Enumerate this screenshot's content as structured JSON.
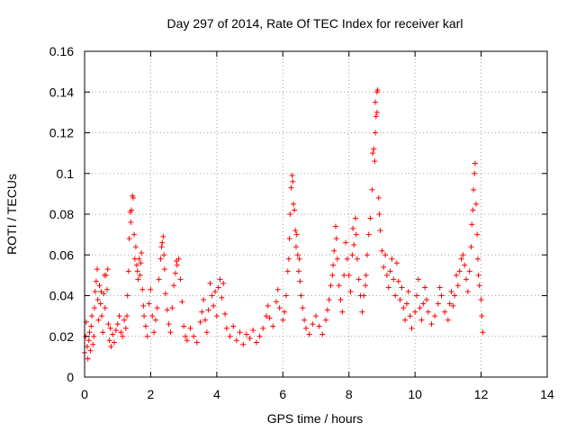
{
  "chart_data": {
    "type": "scatter",
    "title": "Day 297 of 2014, Rate Of TEC Index for receiver karl",
    "xlabel": "GPS time / hours",
    "ylabel": "ROTI / TECUs",
    "xlim": [
      0,
      14
    ],
    "ylim": [
      0,
      0.16
    ],
    "x_ticks": [
      0,
      2,
      4,
      6,
      8,
      10,
      12,
      14
    ],
    "y_ticks": [
      0,
      0.02,
      0.04,
      0.06,
      0.08,
      0.1,
      0.12,
      0.14,
      0.16
    ],
    "x_tick_labels": [
      "0",
      "2",
      "4",
      "6",
      "8",
      "10",
      "12",
      "14"
    ],
    "y_tick_labels": [
      "0",
      "0.02",
      "0.04",
      "0.06",
      "0.08",
      "0.1",
      "0.12",
      "0.14",
      "0.16"
    ],
    "grid": true,
    "marker": "+",
    "color": "#ff0000",
    "series": [
      {
        "name": "ROTI",
        "points": [
          [
            0.0,
            0.012
          ],
          [
            0.03,
            0.02
          ],
          [
            0.05,
            0.027
          ],
          [
            0.08,
            0.015
          ],
          [
            0.1,
            0.009
          ],
          [
            0.13,
            0.018
          ],
          [
            0.15,
            0.022
          ],
          [
            0.18,
            0.013
          ],
          [
            0.2,
            0.025
          ],
          [
            0.22,
            0.03
          ],
          [
            0.25,
            0.016
          ],
          [
            0.28,
            0.02
          ],
          [
            0.3,
            0.034
          ],
          [
            0.32,
            0.042
          ],
          [
            0.35,
            0.047
          ],
          [
            0.38,
            0.053
          ],
          [
            0.4,
            0.038
          ],
          [
            0.42,
            0.028
          ],
          [
            0.45,
            0.045
          ],
          [
            0.48,
            0.036
          ],
          [
            0.5,
            0.042
          ],
          [
            0.52,
            0.03
          ],
          [
            0.55,
            0.022
          ],
          [
            0.58,
            0.041
          ],
          [
            0.6,
            0.05
          ],
          [
            0.62,
            0.034
          ],
          [
            0.65,
            0.05
          ],
          [
            0.68,
            0.043
          ],
          [
            0.7,
            0.053
          ],
          [
            0.72,
            0.026
          ],
          [
            0.75,
            0.018
          ],
          [
            0.78,
            0.024
          ],
          [
            0.8,
            0.015
          ],
          [
            0.85,
            0.021
          ],
          [
            0.9,
            0.017
          ],
          [
            0.95,
            0.023
          ],
          [
            1.0,
            0.026
          ],
          [
            1.05,
            0.03
          ],
          [
            1.1,
            0.022
          ],
          [
            1.15,
            0.02
          ],
          [
            1.2,
            0.028
          ],
          [
            1.25,
            0.024
          ],
          [
            1.28,
            0.03
          ],
          [
            1.3,
            0.04
          ],
          [
            1.33,
            0.052
          ],
          [
            1.35,
            0.068
          ],
          [
            1.38,
            0.081
          ],
          [
            1.4,
            0.076
          ],
          [
            1.42,
            0.082
          ],
          [
            1.45,
            0.089
          ],
          [
            1.47,
            0.088
          ],
          [
            1.5,
            0.07
          ],
          [
            1.52,
            0.058
          ],
          [
            1.55,
            0.064
          ],
          [
            1.58,
            0.055
          ],
          [
            1.6,
            0.052
          ],
          [
            1.62,
            0.048
          ],
          [
            1.65,
            0.058
          ],
          [
            1.68,
            0.05
          ],
          [
            1.7,
            0.056
          ],
          [
            1.72,
            0.061
          ],
          [
            1.75,
            0.043
          ],
          [
            1.78,
            0.035
          ],
          [
            1.8,
            0.03
          ],
          [
            1.85,
            0.025
          ],
          [
            1.9,
            0.02
          ],
          [
            1.95,
            0.036
          ],
          [
            2.0,
            0.043
          ],
          [
            2.05,
            0.03
          ],
          [
            2.1,
            0.022
          ],
          [
            2.15,
            0.028
          ],
          [
            2.2,
            0.034
          ],
          [
            2.25,
            0.048
          ],
          [
            2.3,
            0.058
          ],
          [
            2.33,
            0.064
          ],
          [
            2.35,
            0.066
          ],
          [
            2.38,
            0.069
          ],
          [
            2.4,
            0.06
          ],
          [
            2.42,
            0.053
          ],
          [
            2.45,
            0.041
          ],
          [
            2.5,
            0.033
          ],
          [
            2.55,
            0.026
          ],
          [
            2.6,
            0.022
          ],
          [
            2.65,
            0.034
          ],
          [
            2.7,
            0.045
          ],
          [
            2.75,
            0.051
          ],
          [
            2.78,
            0.057
          ],
          [
            2.8,
            0.055
          ],
          [
            2.85,
            0.058
          ],
          [
            2.9,
            0.048
          ],
          [
            2.95,
            0.037
          ],
          [
            3.0,
            0.025
          ],
          [
            3.05,
            0.02
          ],
          [
            3.1,
            0.018
          ],
          [
            3.2,
            0.024
          ],
          [
            3.3,
            0.02
          ],
          [
            3.4,
            0.017
          ],
          [
            3.5,
            0.027
          ],
          [
            3.55,
            0.032
          ],
          [
            3.6,
            0.038
          ],
          [
            3.65,
            0.028
          ],
          [
            3.7,
            0.022
          ],
          [
            3.75,
            0.033
          ],
          [
            3.8,
            0.046
          ],
          [
            3.85,
            0.04
          ],
          [
            3.9,
            0.035
          ],
          [
            3.95,
            0.042
          ],
          [
            4.0,
            0.03
          ],
          [
            4.05,
            0.044
          ],
          [
            4.1,
            0.048
          ],
          [
            4.15,
            0.039
          ],
          [
            4.2,
            0.046
          ],
          [
            4.25,
            0.031
          ],
          [
            4.3,
            0.024
          ],
          [
            4.4,
            0.02
          ],
          [
            4.5,
            0.025
          ],
          [
            4.6,
            0.018
          ],
          [
            4.7,
            0.022
          ],
          [
            4.8,
            0.016
          ],
          [
            4.9,
            0.021
          ],
          [
            5.0,
            0.019
          ],
          [
            5.1,
            0.023
          ],
          [
            5.2,
            0.017
          ],
          [
            5.3,
            0.02
          ],
          [
            5.4,
            0.024
          ],
          [
            5.5,
            0.03
          ],
          [
            5.55,
            0.035
          ],
          [
            5.6,
            0.029
          ],
          [
            5.7,
            0.025
          ],
          [
            5.8,
            0.037
          ],
          [
            5.85,
            0.043
          ],
          [
            5.9,
            0.034
          ],
          [
            6.0,
            0.028
          ],
          [
            6.05,
            0.032
          ],
          [
            6.1,
            0.04
          ],
          [
            6.15,
            0.052
          ],
          [
            6.18,
            0.058
          ],
          [
            6.2,
            0.068
          ],
          [
            6.22,
            0.08
          ],
          [
            6.25,
            0.093
          ],
          [
            6.28,
            0.099
          ],
          [
            6.3,
            0.096
          ],
          [
            6.32,
            0.085
          ],
          [
            6.35,
            0.082
          ],
          [
            6.38,
            0.072
          ],
          [
            6.4,
            0.064
          ],
          [
            6.42,
            0.07
          ],
          [
            6.45,
            0.06
          ],
          [
            6.48,
            0.052
          ],
          [
            6.5,
            0.058
          ],
          [
            6.52,
            0.047
          ],
          [
            6.55,
            0.04
          ],
          [
            6.6,
            0.034
          ],
          [
            6.65,
            0.028
          ],
          [
            6.7,
            0.024
          ],
          [
            6.8,
            0.021
          ],
          [
            6.9,
            0.026
          ],
          [
            7.0,
            0.03
          ],
          [
            7.1,
            0.025
          ],
          [
            7.2,
            0.021
          ],
          [
            7.3,
            0.028
          ],
          [
            7.35,
            0.033
          ],
          [
            7.4,
            0.038
          ],
          [
            7.45,
            0.045
          ],
          [
            7.5,
            0.05
          ],
          [
            7.52,
            0.055
          ],
          [
            7.55,
            0.062
          ],
          [
            7.6,
            0.074
          ],
          [
            7.62,
            0.068
          ],
          [
            7.65,
            0.058
          ],
          [
            7.7,
            0.045
          ],
          [
            7.75,
            0.038
          ],
          [
            7.8,
            0.032
          ],
          [
            7.85,
            0.05
          ],
          [
            7.9,
            0.066
          ],
          [
            7.95,
            0.058
          ],
          [
            8.0,
            0.05
          ],
          [
            8.05,
            0.042
          ],
          [
            8.1,
            0.06
          ],
          [
            8.12,
            0.073
          ],
          [
            8.15,
            0.065
          ],
          [
            8.2,
            0.078
          ],
          [
            8.22,
            0.07
          ],
          [
            8.25,
            0.058
          ],
          [
            8.3,
            0.048
          ],
          [
            8.35,
            0.04
          ],
          [
            8.4,
            0.032
          ],
          [
            8.45,
            0.04
          ],
          [
            8.5,
            0.045
          ],
          [
            8.52,
            0.05
          ],
          [
            8.55,
            0.06
          ],
          [
            8.6,
            0.07
          ],
          [
            8.65,
            0.078
          ],
          [
            8.7,
            0.092
          ],
          [
            8.72,
            0.11
          ],
          [
            8.75,
            0.112
          ],
          [
            8.78,
            0.106
          ],
          [
            8.8,
            0.12
          ],
          [
            8.82,
            0.128
          ],
          [
            8.85,
            0.13
          ],
          [
            8.8,
            0.135
          ],
          [
            8.85,
            0.14
          ],
          [
            8.87,
            0.141
          ],
          [
            8.9,
            0.088
          ],
          [
            8.92,
            0.08
          ],
          [
            8.95,
            0.072
          ],
          [
            9.0,
            0.062
          ],
          [
            9.05,
            0.054
          ],
          [
            9.1,
            0.06
          ],
          [
            9.15,
            0.05
          ],
          [
            9.2,
            0.044
          ],
          [
            9.25,
            0.052
          ],
          [
            9.3,
            0.058
          ],
          [
            9.35,
            0.048
          ],
          [
            9.4,
            0.04
          ],
          [
            9.45,
            0.056
          ],
          [
            9.5,
            0.047
          ],
          [
            9.55,
            0.038
          ],
          [
            9.6,
            0.044
          ],
          [
            9.65,
            0.034
          ],
          [
            9.7,
            0.028
          ],
          [
            9.75,
            0.036
          ],
          [
            9.8,
            0.042
          ],
          [
            9.85,
            0.03
          ],
          [
            9.9,
            0.024
          ],
          [
            10.0,
            0.032
          ],
          [
            10.05,
            0.04
          ],
          [
            10.1,
            0.048
          ],
          [
            10.15,
            0.034
          ],
          [
            10.2,
            0.028
          ],
          [
            10.25,
            0.036
          ],
          [
            10.3,
            0.044
          ],
          [
            10.35,
            0.038
          ],
          [
            10.4,
            0.032
          ],
          [
            10.5,
            0.026
          ],
          [
            10.6,
            0.03
          ],
          [
            10.7,
            0.036
          ],
          [
            10.75,
            0.044
          ],
          [
            10.8,
            0.04
          ],
          [
            10.9,
            0.032
          ],
          [
            11.0,
            0.028
          ],
          [
            11.05,
            0.036
          ],
          [
            11.1,
            0.042
          ],
          [
            11.15,
            0.035
          ],
          [
            11.2,
            0.04
          ],
          [
            11.25,
            0.05
          ],
          [
            11.3,
            0.045
          ],
          [
            11.35,
            0.052
          ],
          [
            11.4,
            0.058
          ],
          [
            11.45,
            0.06
          ],
          [
            11.5,
            0.055
          ],
          [
            11.55,
            0.048
          ],
          [
            11.6,
            0.042
          ],
          [
            11.65,
            0.052
          ],
          [
            11.7,
            0.064
          ],
          [
            11.72,
            0.075
          ],
          [
            11.75,
            0.082
          ],
          [
            11.77,
            0.092
          ],
          [
            11.8,
            0.1
          ],
          [
            11.82,
            0.105
          ],
          [
            11.85,
            0.085
          ],
          [
            11.88,
            0.07
          ],
          [
            11.9,
            0.058
          ],
          [
            11.92,
            0.05
          ],
          [
            11.95,
            0.045
          ],
          [
            12.0,
            0.038
          ],
          [
            12.02,
            0.03
          ],
          [
            12.05,
            0.022
          ]
        ]
      }
    ]
  }
}
